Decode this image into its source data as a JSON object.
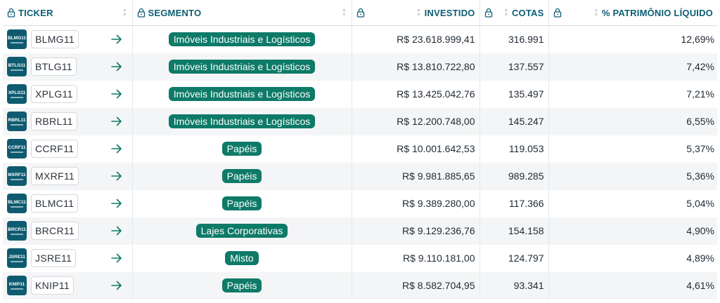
{
  "headers": {
    "ticker": "TICKER",
    "segmento": "SEGMENTO",
    "investido": "INVESTIDO",
    "cotas": "COTAS",
    "patrimonio": "% PATRIMÔNIO LÍQUIDO"
  },
  "colors": {
    "header_text": "#0c5e74",
    "badge_bg": "#0e7a68",
    "logo_bg": "#0e5b70",
    "arrow": "#0e7a68"
  },
  "rows": [
    {
      "logo": "BLMG11",
      "ticker": "BLMG11",
      "segmento": "Imóveis Industriais e Logísticos",
      "investido": "R$ 23.618.999,41",
      "cotas": "316.991",
      "patrimonio": "12,69%"
    },
    {
      "logo": "BTLG11",
      "ticker": "BTLG11",
      "segmento": "Imóveis Industriais e Logísticos",
      "investido": "R$ 13.810.722,80",
      "cotas": "137.557",
      "patrimonio": "7,42%"
    },
    {
      "logo": "XPLG11",
      "ticker": "XPLG11",
      "segmento": "Imóveis Industriais e Logísticos",
      "investido": "R$ 13.425.042,76",
      "cotas": "135.497",
      "patrimonio": "7,21%"
    },
    {
      "logo": "RBRL11",
      "ticker": "RBRL11",
      "segmento": "Imóveis Industriais e Logísticos",
      "investido": "R$ 12.200.748,00",
      "cotas": "145.247",
      "patrimonio": "6,55%"
    },
    {
      "logo": "CCRF11",
      "ticker": "CCRF11",
      "segmento": "Papéis",
      "investido": "R$ 10.001.642,53",
      "cotas": "119.053",
      "patrimonio": "5,37%"
    },
    {
      "logo": "MXRF11",
      "ticker": "MXRF11",
      "segmento": "Papéis",
      "investido": "R$ 9.981.885,65",
      "cotas": "989.285",
      "patrimonio": "5,36%"
    },
    {
      "logo": "BLMC11",
      "ticker": "BLMC11",
      "segmento": "Papéis",
      "investido": "R$ 9.389.280,00",
      "cotas": "117.366",
      "patrimonio": "5,04%"
    },
    {
      "logo": "BRCR11",
      "ticker": "BRCR11",
      "segmento": "Lajes Corporativas",
      "investido": "R$ 9.129.236,76",
      "cotas": "154.158",
      "patrimonio": "4,90%"
    },
    {
      "logo": "JSRE11",
      "ticker": "JSRE11",
      "segmento": "Misto",
      "investido": "R$ 9.110.181,00",
      "cotas": "124.797",
      "patrimonio": "4,89%"
    },
    {
      "logo": "KNIP11",
      "ticker": "KNIP11",
      "segmento": "Papéis",
      "investido": "R$ 8.582.704,95",
      "cotas": "93.341",
      "patrimonio": "4,61%"
    }
  ]
}
